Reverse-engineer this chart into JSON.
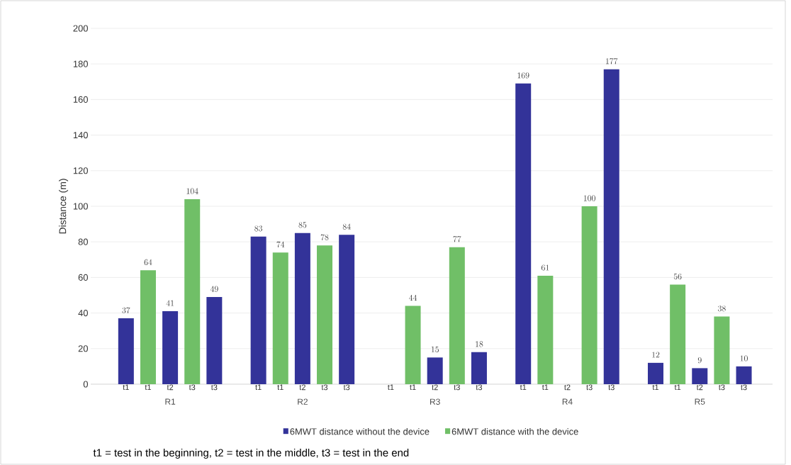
{
  "chart_data": {
    "type": "bar",
    "ylabel": "Distance (m)",
    "categories": [
      "t1",
      "t1",
      "t2",
      "t3",
      "t3",
      null,
      "t1",
      "t1",
      "t2",
      "t3",
      "t3",
      null,
      "t1",
      "t1",
      "t2",
      "t3",
      "t3",
      null,
      "t1",
      "t1",
      "t2",
      "t3",
      "t3",
      null,
      "t1",
      "t1",
      "t2",
      "t3",
      "t3"
    ],
    "series": [
      {
        "name": "6MWT distance without the device",
        "color": "#333399",
        "values": [
          37,
          null,
          41,
          null,
          49,
          null,
          83,
          null,
          85,
          null,
          84,
          null,
          null,
          null,
          15,
          null,
          18,
          null,
          169,
          null,
          null,
          null,
          177,
          null,
          12,
          null,
          9,
          null,
          10
        ]
      },
      {
        "name": "6MWT distance with the device",
        "color": "#70bf67",
        "values": [
          null,
          64,
          null,
          104,
          null,
          null,
          null,
          74,
          null,
          78,
          null,
          null,
          null,
          44,
          null,
          77,
          null,
          null,
          null,
          61,
          null,
          100,
          null,
          null,
          null,
          56,
          null,
          38,
          null
        ]
      }
    ],
    "ylim": [
      0,
      200
    ],
    "yticks": [
      0,
      20,
      40,
      60,
      80,
      100,
      120,
      140,
      160,
      180,
      200
    ],
    "grid": "y",
    "legend": "bottom",
    "data_labels": true,
    "annotations": [
      "R1",
      "R2",
      "R3",
      "R4",
      "R5",
      "t1 = test in the beginning, t2 = test in the middle, t3 = test in the end"
    ]
  }
}
